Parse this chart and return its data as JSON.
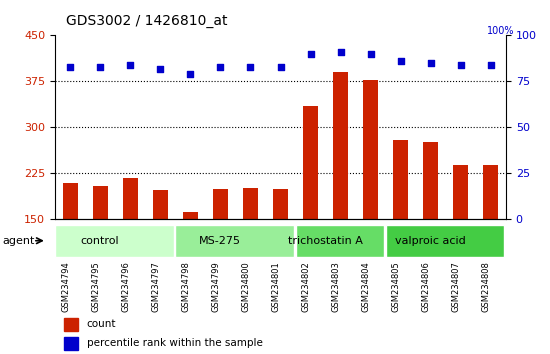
{
  "title": "GDS3002 / 1426810_at",
  "categories": [
    "GSM234794",
    "GSM234795",
    "GSM234796",
    "GSM234797",
    "GSM234798",
    "GSM234799",
    "GSM234800",
    "GSM234801",
    "GSM234802",
    "GSM234803",
    "GSM234804",
    "GSM234805",
    "GSM234806",
    "GSM234807",
    "GSM234808"
  ],
  "bar_values": [
    210,
    205,
    218,
    198,
    163,
    200,
    202,
    200,
    335,
    390,
    378,
    280,
    276,
    238,
    238
  ],
  "percentile_values": [
    83,
    83,
    84,
    82,
    79,
    83,
    83,
    83,
    90,
    91,
    90,
    86,
    85,
    84,
    84
  ],
  "bar_color": "#cc2200",
  "percentile_color": "#0000cc",
  "bar_baseline": 150,
  "ylim_left": [
    150,
    450
  ],
  "ylim_right": [
    0,
    100
  ],
  "yticks_left": [
    150,
    225,
    300,
    375,
    450
  ],
  "yticks_right": [
    0,
    25,
    50,
    75,
    100
  ],
  "groups": [
    {
      "label": "control",
      "start": 0,
      "end": 3,
      "color": "#ccffcc"
    },
    {
      "label": "MS-275",
      "start": 4,
      "end": 7,
      "color": "#99ee99"
    },
    {
      "label": "trichostatin A",
      "start": 8,
      "end": 10,
      "color": "#66dd66"
    },
    {
      "label": "valproic acid",
      "start": 11,
      "end": 14,
      "color": "#44cc44"
    }
  ],
  "agent_label": "agent",
  "legend_count_label": "count",
  "legend_percentile_label": "percentile rank within the sample",
  "background_color": "#ffffff",
  "plot_bg_color": "#ffffff",
  "tick_label_color_left": "#cc2200",
  "tick_label_color_right": "#0000cc",
  "grid_color": "#000000",
  "dotted_lines": [
    225,
    300,
    375
  ]
}
